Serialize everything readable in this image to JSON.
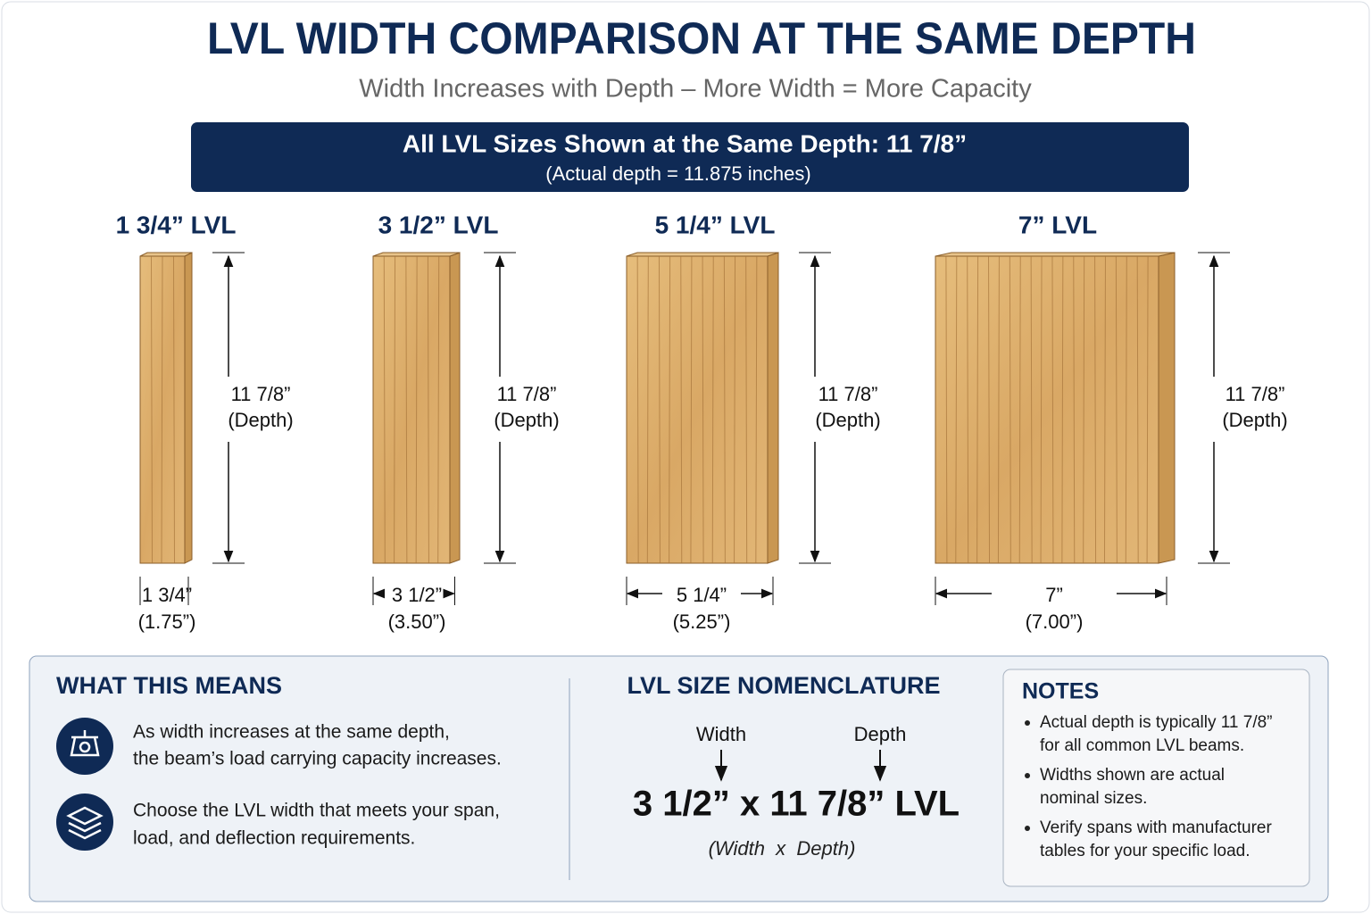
{
  "header": {
    "title": "LVL WIDTH COMPARISON AT THE SAME DEPTH",
    "subtitle": "Width Increases with Depth – More Width = More Capacity"
  },
  "banner": {
    "title": "All LVL Sizes Shown at the Same Depth: 11 7/8”",
    "subtitle": "(Actual depth = 11.875 inches)"
  },
  "beams": [
    {
      "label": "1 3/4” LVL",
      "depth": "11 7/8”",
      "depth_note": "(Depth)",
      "width": "1 3/4”",
      "width_note": "(1.75”)"
    },
    {
      "label": "3 1/2” LVL",
      "depth": "11 7/8”",
      "depth_note": "(Depth)",
      "width": "3 1/2”",
      "width_note": "(3.50”)"
    },
    {
      "label": "5 1/4” LVL",
      "depth": "11 7/8”",
      "depth_note": "(Depth)",
      "width": "5 1/4”",
      "width_note": "(5.25”)"
    },
    {
      "label": "7” LVL",
      "depth": "11 7/8”",
      "depth_note": "(Depth)",
      "width": "7”",
      "width_note": "(7.00”)"
    }
  ],
  "means": {
    "title": "WHAT THIS MEANS",
    "items": [
      [
        "As width increases at the same depth,",
        "the beam’s load carrying capacity increases."
      ],
      [
        "Choose the LVL width that meets your span,",
        "load, and deflection requirements."
      ]
    ]
  },
  "nomenclature": {
    "title": "LVL SIZE NOMENCLATURE",
    "width_label": "Width",
    "depth_label": "Depth",
    "example": "3 1/2” x 11 7/8” LVL",
    "formula": "(Width  x  Depth)"
  },
  "notes": {
    "title": "NOTES",
    "items": [
      [
        "Actual depth is typically 11 7/8”",
        "for all common LVL beams."
      ],
      [
        "Widths shown are actual",
        "nominal sizes."
      ],
      [
        "Verify spans with manufacturer",
        "tables for your specific load."
      ]
    ]
  }
}
